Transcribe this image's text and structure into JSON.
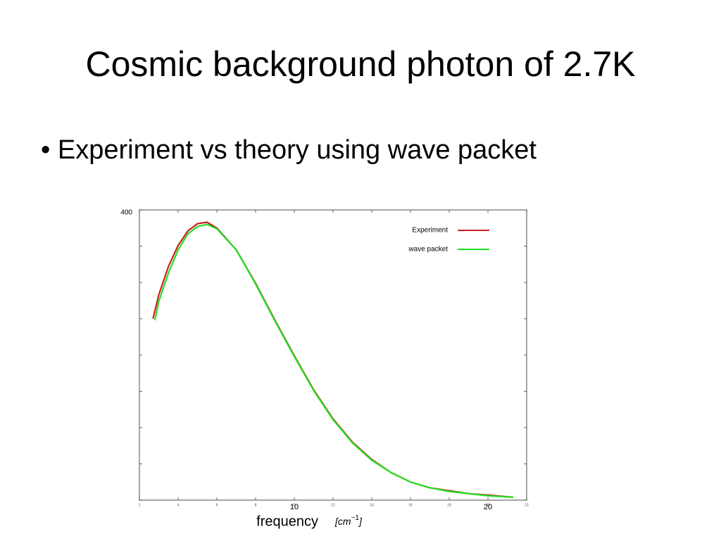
{
  "title": "Cosmic background photon of 2.7K",
  "bullet": "Experiment vs theory using  wave packet",
  "chart_data": {
    "type": "line",
    "x_label": "frequency",
    "x_unit_base": "[cm",
    "x_unit_exponent": "−1",
    "x_unit_close": "]",
    "xlim": [
      2,
      22
    ],
    "xticks": [
      2,
      4,
      6,
      8,
      10,
      12,
      14,
      16,
      18,
      20,
      22
    ],
    "x_large_labels": [
      10,
      20
    ],
    "ylim": [
      0,
      400
    ],
    "yticks": [
      400
    ],
    "ytick_marks": [
      0,
      50,
      100,
      150,
      200,
      250,
      300,
      350
    ],
    "legend": "top-right",
    "series": [
      {
        "name": "Experiment",
        "color": "#cc1f1f",
        "x": [
          2.7,
          3.0,
          3.5,
          4.0,
          4.5,
          5.0,
          5.5,
          6.0,
          7,
          8,
          9,
          10,
          11,
          12,
          13,
          14,
          15,
          16,
          17,
          18,
          19,
          20,
          21.3
        ],
        "values": [
          250,
          283,
          322,
          351,
          371,
          381,
          383,
          375,
          345,
          299,
          248,
          199,
          152,
          112,
          80,
          56,
          38,
          25,
          17,
          13,
          9,
          7,
          4
        ]
      },
      {
        "name": "wave packet",
        "color": "#22e022",
        "x": [
          2.8,
          3.0,
          3.5,
          4.0,
          4.5,
          5.0,
          5.5,
          6.0,
          7,
          8,
          9,
          10,
          11,
          12,
          13,
          14,
          15,
          16,
          17,
          18,
          19,
          20,
          21.3
        ],
        "values": [
          248,
          274,
          313,
          345,
          367,
          377,
          380,
          374,
          345,
          298,
          247,
          198,
          151,
          111,
          79,
          55,
          38,
          25,
          17,
          12,
          9,
          6,
          4
        ]
      }
    ]
  }
}
